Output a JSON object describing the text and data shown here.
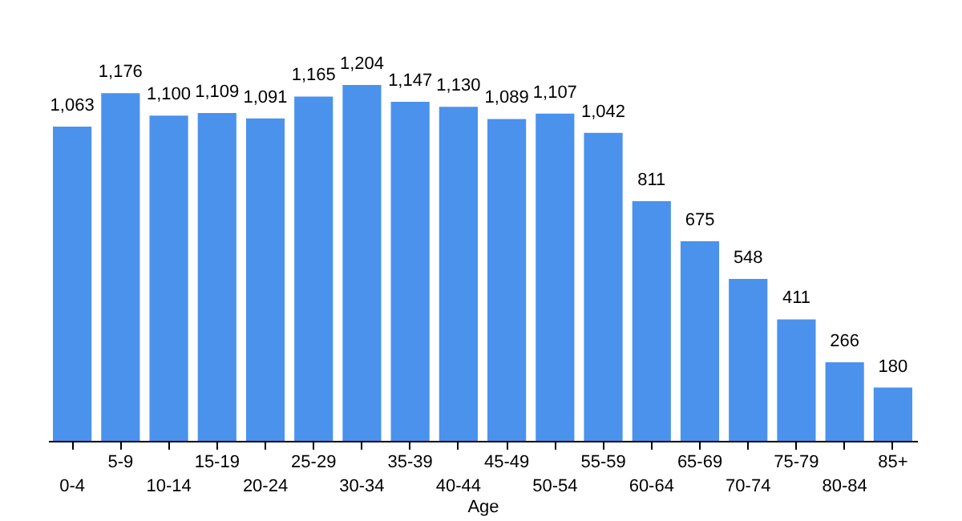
{
  "chart_data": {
    "type": "bar",
    "xlabel": "Age",
    "categories": [
      "0-4",
      "5-9",
      "10-14",
      "15-19",
      "20-24",
      "25-29",
      "30-34",
      "35-39",
      "40-44",
      "45-49",
      "50-54",
      "55-59",
      "60-64",
      "65-69",
      "70-74",
      "75-79",
      "80-84",
      "85+"
    ],
    "values": [
      1063,
      1176,
      1100,
      1109,
      1091,
      1165,
      1204,
      1147,
      1130,
      1089,
      1107,
      1042,
      811,
      675,
      548,
      411,
      266,
      180
    ],
    "value_labels": [
      "1,063",
      "1,176",
      "1,100",
      "1,109",
      "1,091",
      "1,165",
      "1,204",
      "1,147",
      "1,130",
      "1,089",
      "1,107",
      "1,042",
      "811",
      "675",
      "548",
      "411",
      "266",
      "180"
    ],
    "color": "#4a92ec",
    "tick_labels": "x",
    "grid": false
  }
}
